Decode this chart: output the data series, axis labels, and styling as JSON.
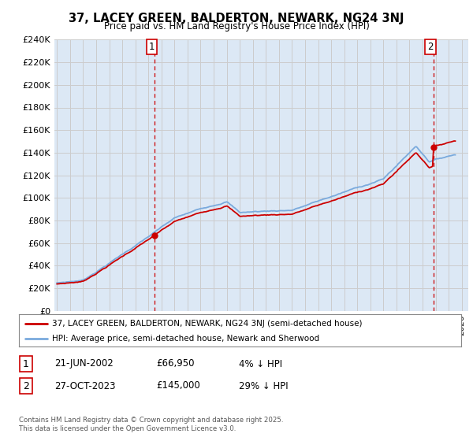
{
  "title": "37, LACEY GREEN, BALDERTON, NEWARK, NG24 3NJ",
  "subtitle": "Price paid vs. HM Land Registry's House Price Index (HPI)",
  "ylabel_ticks": [
    "£0",
    "£20K",
    "£40K",
    "£60K",
    "£80K",
    "£100K",
    "£120K",
    "£140K",
    "£160K",
    "£180K",
    "£200K",
    "£220K",
    "£240K"
  ],
  "ylim": [
    0,
    240000
  ],
  "xlim_start": 1994.8,
  "xlim_end": 2026.5,
  "transaction1_date": 2002.47,
  "transaction1_price": 66950,
  "transaction1_label": "1",
  "transaction2_date": 2023.82,
  "transaction2_price": 145000,
  "transaction2_label": "2",
  "legend_line1": "37, LACEY GREEN, BALDERTON, NEWARK, NG24 3NJ (semi-detached house)",
  "legend_line2": "HPI: Average price, semi-detached house, Newark and Sherwood",
  "table_row1": [
    "1",
    "21-JUN-2002",
    "£66,950",
    "4% ↓ HPI"
  ],
  "table_row2": [
    "2",
    "27-OCT-2023",
    "£145,000",
    "29% ↓ HPI"
  ],
  "footer": "Contains HM Land Registry data © Crown copyright and database right 2025.\nThis data is licensed under the Open Government Licence v3.0.",
  "color_price": "#cc0000",
  "color_hpi": "#7aaadd",
  "color_grid": "#cccccc",
  "color_bg": "#dce8f5",
  "color_vline": "#cc0000",
  "background_color": "#ffffff"
}
